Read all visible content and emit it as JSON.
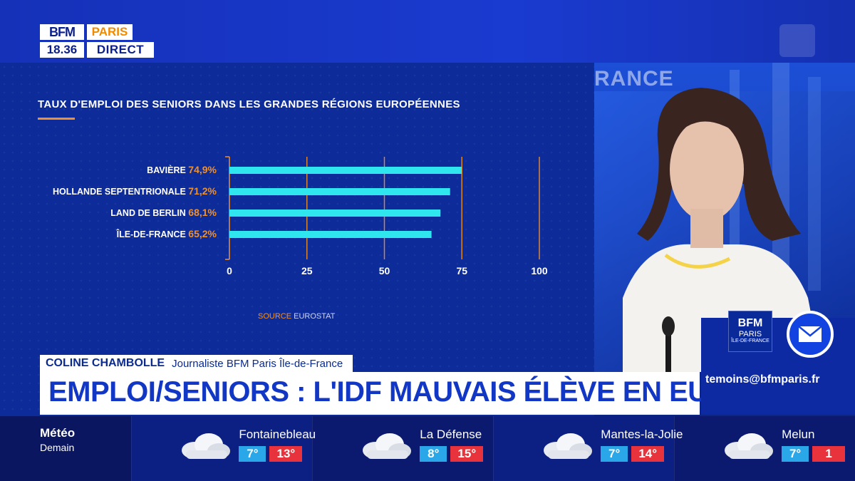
{
  "channel": {
    "brand": "BFM",
    "region": "PARIS",
    "time": "18.36",
    "status": "DIRECT"
  },
  "chart_data": {
    "type": "bar",
    "orientation": "horizontal",
    "title": "TAUX D'EMPLOI DES SENIORS DANS LES GRANDES RÉGIONS EUROPÉENNES",
    "categories": [
      "BAVIÈRE",
      "HOLLANDE SEPTENTRIONALE",
      "LAND DE BERLIN",
      "ÎLE-DE-FRANCE"
    ],
    "values": [
      74.9,
      71.2,
      68.1,
      65.2
    ],
    "value_labels": [
      "74,9%",
      "71,2%",
      "68,1%",
      "65,2%"
    ],
    "xlim": [
      0,
      100
    ],
    "xticks": [
      "0",
      "25",
      "50",
      "75",
      "100"
    ],
    "grid": true,
    "bar_color": "#2fe6ee",
    "label_value_color": "#f0902a",
    "source_label": "SOURCE",
    "source_value": "EUROSTAT"
  },
  "video": {
    "background_text": "RANCE"
  },
  "lower_third": {
    "name": "COLINE CHAMBOLLE",
    "role": "Journaliste BFM Paris Île-de-France",
    "headline": "EMPLOI/SENIORS : L'IDF MAUVAIS ÉLÈVE EN EUROPE"
  },
  "contact": {
    "logo_top": "BFM",
    "logo_mid": "PARIS",
    "logo_bottom": "ÎLE-DE-FRANCE",
    "email": "temoins@bfmparis.fr",
    "icon": "mail-icon"
  },
  "weather": {
    "title": "Météo",
    "subtitle": "Demain",
    "cities": [
      {
        "name": "Fontainebleau",
        "min": "7°",
        "max": "13°",
        "icon": "cloud-icon"
      },
      {
        "name": "La Défense",
        "min": "8°",
        "max": "15°",
        "icon": "cloud-icon"
      },
      {
        "name": "Mantes-la-Jolie",
        "min": "7°",
        "max": "14°",
        "icon": "cloud-icon"
      },
      {
        "name": "Melun",
        "min": "7°",
        "max": "1",
        "icon": "cloud-icon"
      }
    ]
  },
  "colors": {
    "brand_blue": "#1237c4",
    "accent_orange": "#f0902a",
    "bar_cyan": "#2fe6ee",
    "temp_min": "#2aa7e8",
    "temp_max": "#e8323c"
  }
}
